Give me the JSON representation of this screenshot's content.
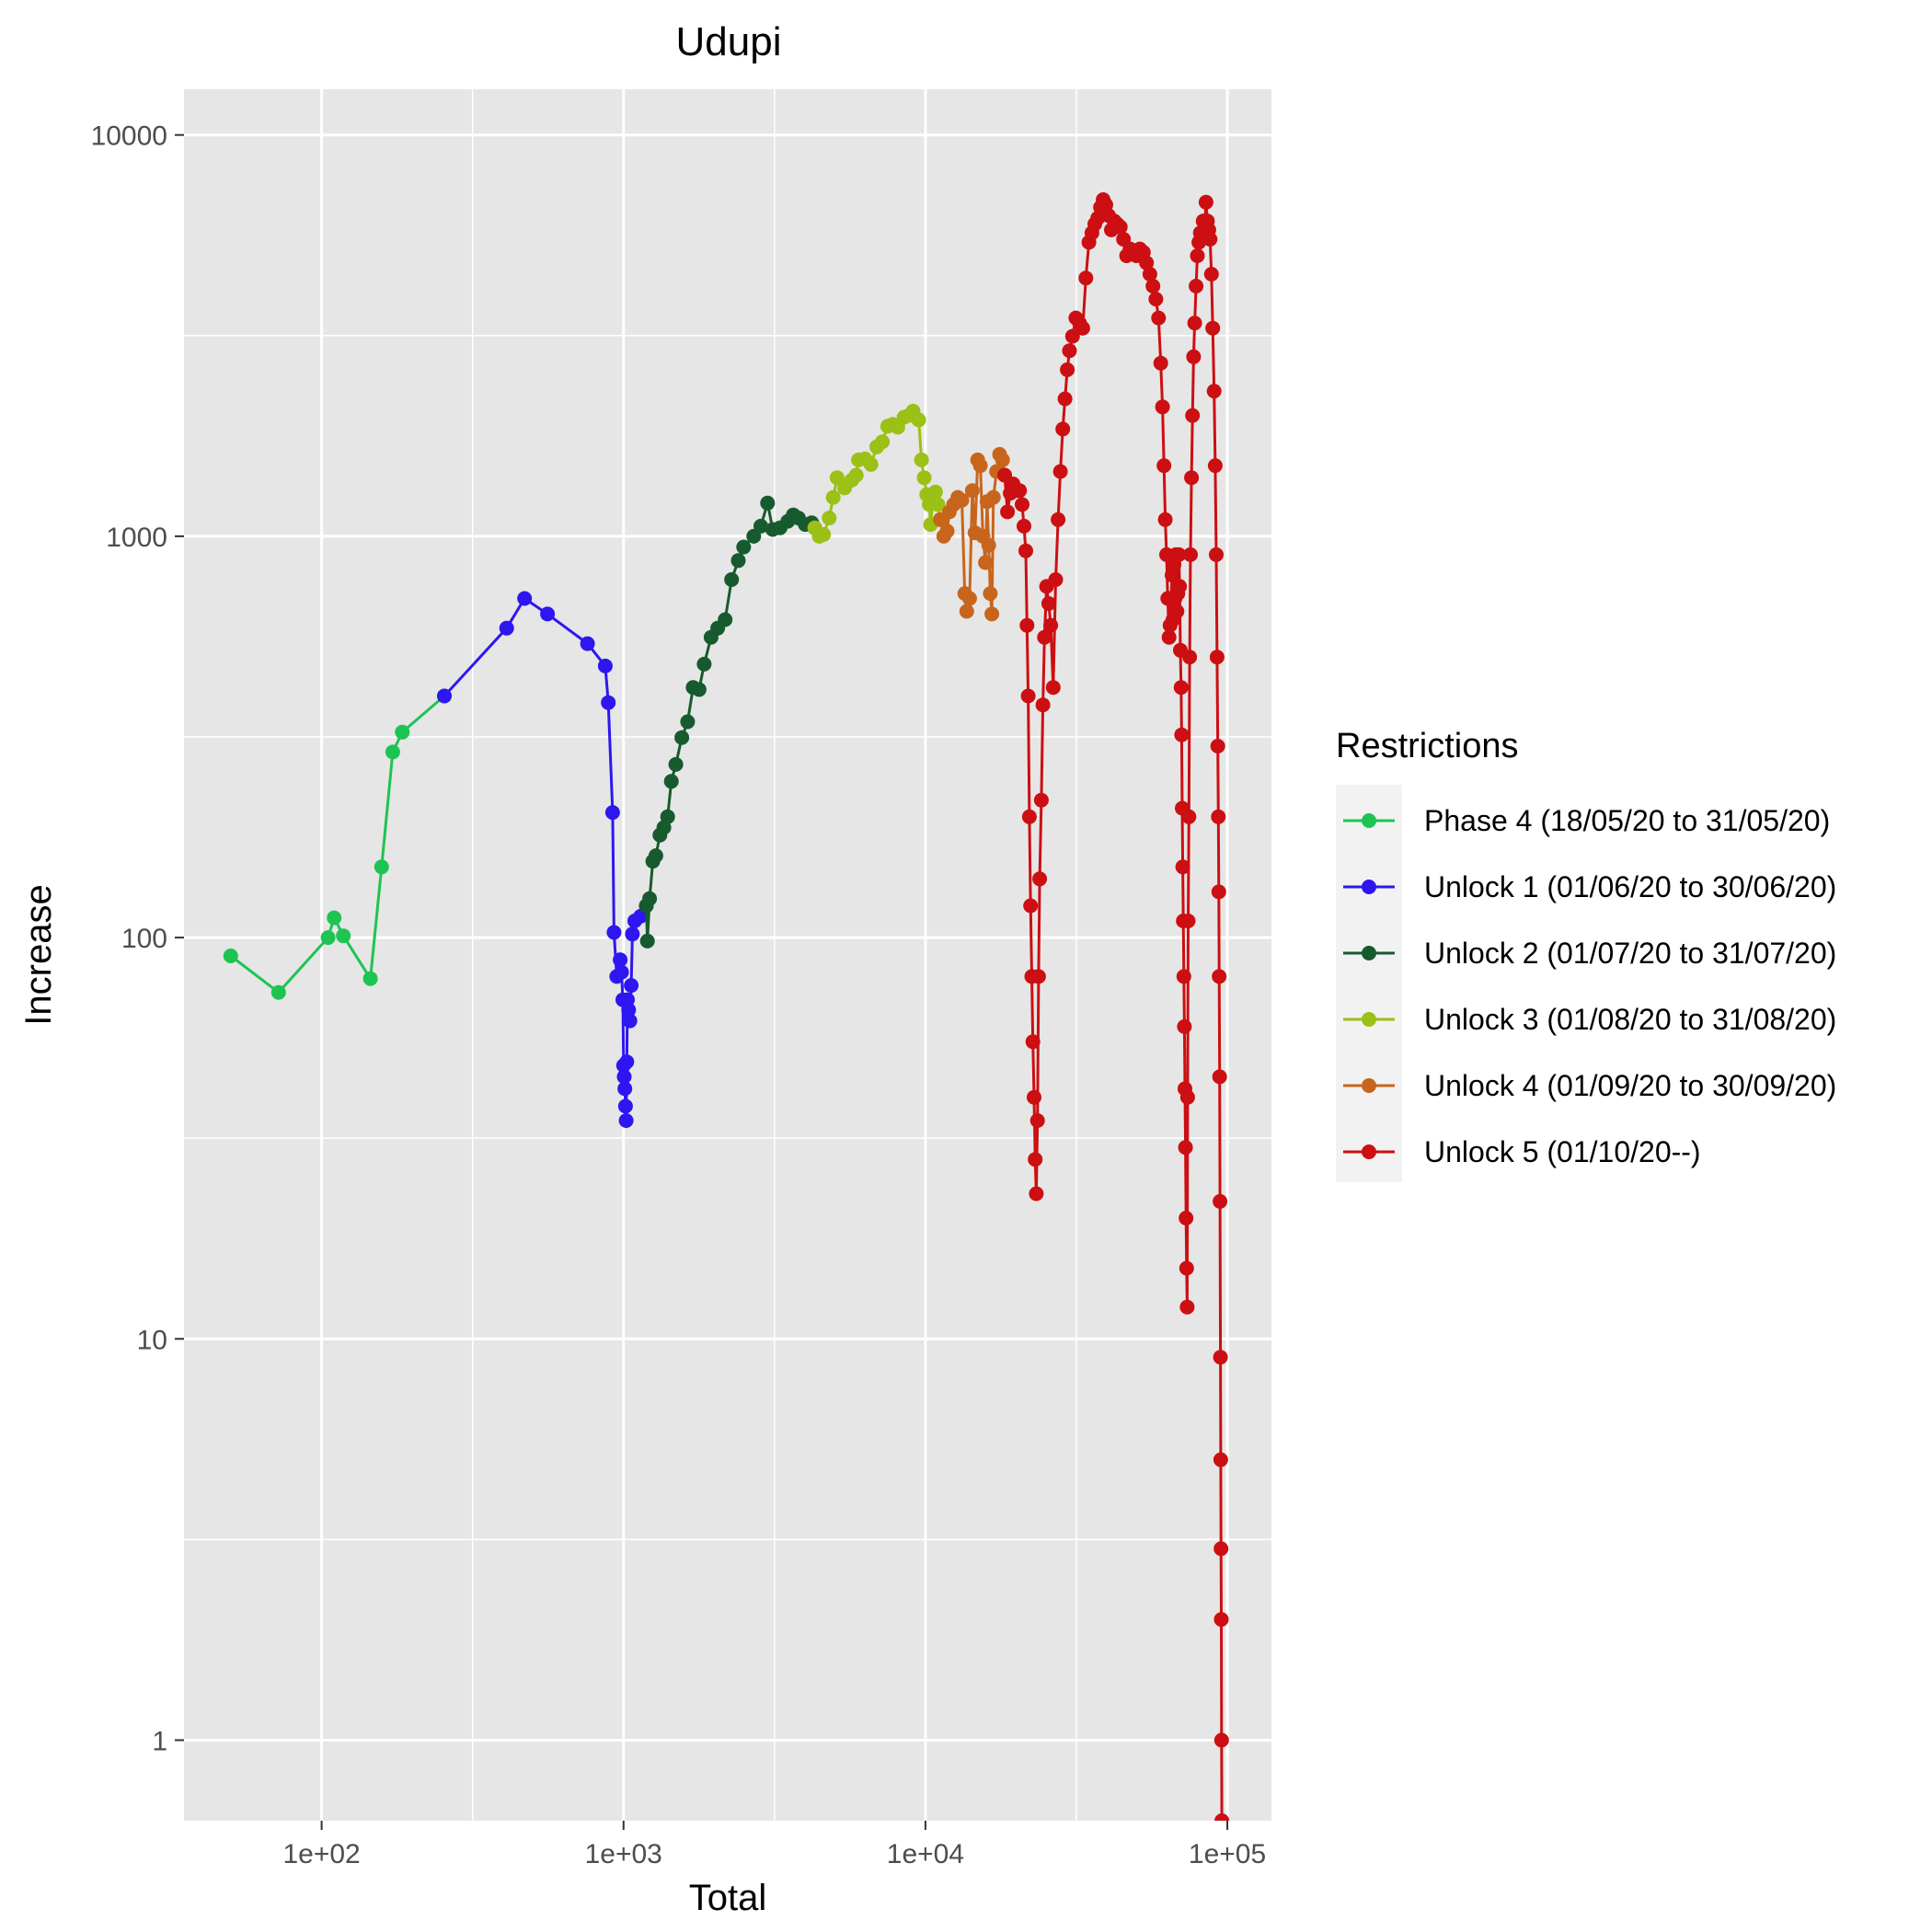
{
  "chart_data": {
    "type": "line",
    "title": "Udupi",
    "xlabel": "Total",
    "ylabel": "Increase",
    "x_scale": "log10",
    "y_scale": "log10",
    "xlim": [
      35,
      140000
    ],
    "ylim": [
      0.63,
      13000
    ],
    "x_ticks": [
      {
        "value": 100,
        "label": "1e+02"
      },
      {
        "value": 1000,
        "label": "1e+03"
      },
      {
        "value": 10000,
        "label": "1e+04"
      },
      {
        "value": 100000,
        "label": "1e+05"
      }
    ],
    "y_ticks": [
      {
        "value": 1,
        "label": "1"
      },
      {
        "value": 10,
        "label": "10"
      },
      {
        "value": 100,
        "label": "100"
      },
      {
        "value": 1000,
        "label": "1000"
      },
      {
        "value": 10000,
        "label": "10000"
      }
    ],
    "grid": true,
    "legend_title": "Restrictions",
    "legend_position": "right",
    "series": [
      {
        "name": "Phase 4 (18/05/20 to 31/05/20)",
        "color": "#1ec452",
        "points": [
          [
            50,
            90
          ],
          [
            72,
            73
          ],
          [
            105,
            100
          ],
          [
            110,
            112
          ],
          [
            118,
            101
          ],
          [
            145,
            79
          ],
          [
            158,
            150
          ],
          [
            172,
            290
          ],
          [
            185,
            325
          ],
          [
            255,
            400
          ]
        ]
      },
      {
        "name": "Unlock 1 (01/06/20 to 30/06/20)",
        "color": "#2e16f0",
        "points": [
          [
            255,
            400
          ],
          [
            410,
            590
          ],
          [
            470,
            700
          ],
          [
            560,
            640
          ],
          [
            760,
            540
          ],
          [
            870,
            475
          ],
          [
            890,
            385
          ],
          [
            920,
            205
          ],
          [
            930,
            103
          ],
          [
            950,
            80
          ],
          [
            975,
            88
          ],
          [
            985,
            82
          ],
          [
            995,
            70
          ],
          [
            1000,
            48
          ],
          [
            1005,
            45
          ],
          [
            1010,
            42
          ],
          [
            1015,
            38
          ],
          [
            1020,
            35
          ],
          [
            1025,
            49
          ],
          [
            1030,
            70
          ],
          [
            1040,
            66
          ],
          [
            1050,
            62
          ],
          [
            1060,
            76
          ],
          [
            1070,
            102
          ],
          [
            1090,
            110
          ],
          [
            1140,
            113
          ],
          [
            1190,
            120
          ]
        ]
      },
      {
        "name": "Unlock 2 (01/07/20 to 31/07/20)",
        "color": "#175a2e",
        "points": [
          [
            1190,
            120
          ],
          [
            1200,
            98
          ],
          [
            1220,
            125
          ],
          [
            1250,
            155
          ],
          [
            1280,
            160
          ],
          [
            1320,
            180
          ],
          [
            1360,
            188
          ],
          [
            1400,
            200
          ],
          [
            1440,
            245
          ],
          [
            1490,
            270
          ],
          [
            1560,
            315
          ],
          [
            1630,
            345
          ],
          [
            1700,
            420
          ],
          [
            1780,
            415
          ],
          [
            1850,
            480
          ],
          [
            1950,
            560
          ],
          [
            2050,
            590
          ],
          [
            2170,
            620
          ],
          [
            2280,
            780
          ],
          [
            2400,
            870
          ],
          [
            2500,
            940
          ],
          [
            2700,
            1000
          ],
          [
            2850,
            1060
          ],
          [
            3000,
            1210
          ],
          [
            3120,
            1040
          ],
          [
            3300,
            1050
          ],
          [
            3500,
            1090
          ],
          [
            3650,
            1130
          ],
          [
            3800,
            1110
          ],
          [
            4000,
            1070
          ],
          [
            4200,
            1080
          ],
          [
            4300,
            1050
          ]
        ]
      },
      {
        "name": "Unlock 3 (01/08/20 to 31/08/20)",
        "color": "#9bc016",
        "points": [
          [
            4300,
            1050
          ],
          [
            4450,
            1000
          ],
          [
            4600,
            1010
          ],
          [
            4800,
            1110
          ],
          [
            4950,
            1250
          ],
          [
            5100,
            1400
          ],
          [
            5400,
            1320
          ],
          [
            5700,
            1380
          ],
          [
            5900,
            1420
          ],
          [
            6000,
            1550
          ],
          [
            6300,
            1560
          ],
          [
            6600,
            1510
          ],
          [
            6900,
            1670
          ],
          [
            7200,
            1720
          ],
          [
            7500,
            1880
          ],
          [
            7800,
            1900
          ],
          [
            8100,
            1870
          ],
          [
            8500,
            1980
          ],
          [
            8800,
            2000
          ],
          [
            9100,
            2050
          ],
          [
            9500,
            1950
          ],
          [
            9700,
            1550
          ],
          [
            9900,
            1400
          ],
          [
            10100,
            1270
          ],
          [
            10300,
            1200
          ],
          [
            10400,
            1070
          ],
          [
            10600,
            1230
          ],
          [
            10800,
            1290
          ],
          [
            11000,
            1200
          ],
          [
            11200,
            1100
          ]
        ]
      },
      {
        "name": "Unlock 4 (01/09/20 to 30/09/20)",
        "color": "#c8651c",
        "points": [
          [
            11200,
            1100
          ],
          [
            11500,
            1000
          ],
          [
            11800,
            1030
          ],
          [
            12000,
            1150
          ],
          [
            12400,
            1200
          ],
          [
            12800,
            1250
          ],
          [
            13200,
            1230
          ],
          [
            13500,
            720
          ],
          [
            13700,
            650
          ],
          [
            14000,
            700
          ],
          [
            14300,
            1300
          ],
          [
            14600,
            1020
          ],
          [
            14900,
            1550
          ],
          [
            15200,
            1500
          ],
          [
            15500,
            1000
          ],
          [
            15800,
            860
          ],
          [
            16000,
            1220
          ],
          [
            16200,
            950
          ],
          [
            16400,
            720
          ],
          [
            16600,
            640
          ],
          [
            16800,
            1250
          ],
          [
            17200,
            1450
          ],
          [
            17600,
            1600
          ],
          [
            18000,
            1550
          ],
          [
            18300,
            1420
          ]
        ]
      },
      {
        "name": "Unlock 5 (01/10/20--)",
        "color": "#cc0f12",
        "points": [
          [
            18300,
            1420
          ],
          [
            18700,
            1150
          ],
          [
            19100,
            1280
          ],
          [
            19500,
            1350
          ],
          [
            19900,
            1300
          ],
          [
            20500,
            1300
          ],
          [
            20900,
            1200
          ],
          [
            21200,
            1060
          ],
          [
            21500,
            920
          ],
          [
            21700,
            600
          ],
          [
            21900,
            400
          ],
          [
            22100,
            200
          ],
          [
            22300,
            120
          ],
          [
            22500,
            80
          ],
          [
            22700,
            55
          ],
          [
            22900,
            40
          ],
          [
            23100,
            28
          ],
          [
            23300,
            23
          ],
          [
            23500,
            35
          ],
          [
            23700,
            80
          ],
          [
            23900,
            140
          ],
          [
            24200,
            220
          ],
          [
            24500,
            380
          ],
          [
            24800,
            560
          ],
          [
            25200,
            750
          ],
          [
            25600,
            680
          ],
          [
            26000,
            600
          ],
          [
            26500,
            420
          ],
          [
            27000,
            780
          ],
          [
            27500,
            1100
          ],
          [
            28000,
            1450
          ],
          [
            28500,
            1850
          ],
          [
            29000,
            2200
          ],
          [
            29500,
            2600
          ],
          [
            30000,
            2900
          ],
          [
            30700,
            3150
          ],
          [
            31500,
            3500
          ],
          [
            32400,
            3400
          ],
          [
            33200,
            3300
          ],
          [
            34000,
            4400
          ],
          [
            34800,
            5400
          ],
          [
            35600,
            5700
          ],
          [
            36400,
            6000
          ],
          [
            37200,
            6200
          ],
          [
            38000,
            6600
          ],
          [
            38800,
            6900
          ],
          [
            39600,
            6700
          ],
          [
            40400,
            6300
          ],
          [
            41300,
            5800
          ],
          [
            42200,
            6100
          ],
          [
            43200,
            6000
          ],
          [
            44200,
            5900
          ],
          [
            45300,
            5500
          ],
          [
            46400,
            5000
          ],
          [
            47600,
            5200
          ],
          [
            48800,
            5100
          ],
          [
            50000,
            5000
          ],
          [
            51300,
            5200
          ],
          [
            52700,
            5100
          ],
          [
            54000,
            4800
          ],
          [
            55400,
            4500
          ],
          [
            56700,
            4200
          ],
          [
            58000,
            3900
          ],
          [
            59200,
            3500
          ],
          [
            60200,
            2700
          ],
          [
            61000,
            2100
          ],
          [
            61700,
            1500
          ],
          [
            62300,
            1100
          ],
          [
            62900,
            900
          ],
          [
            63500,
            700
          ],
          [
            64100,
            560
          ],
          [
            64600,
            600
          ],
          [
            65100,
            700
          ],
          [
            65600,
            800
          ],
          [
            66100,
            620
          ],
          [
            66600,
            850
          ],
          [
            67100,
            700
          ],
          [
            67600,
            900
          ],
          [
            68100,
            650
          ],
          [
            68600,
            720
          ],
          [
            69100,
            900
          ],
          [
            69500,
            750
          ],
          [
            69900,
            520
          ],
          [
            70300,
            420
          ],
          [
            70600,
            320
          ],
          [
            70900,
            210
          ],
          [
            71200,
            150
          ],
          [
            71500,
            110
          ],
          [
            71800,
            80
          ],
          [
            72100,
            60
          ],
          [
            72400,
            42
          ],
          [
            72700,
            30
          ],
          [
            73000,
            20
          ],
          [
            73300,
            15
          ],
          [
            73600,
            12
          ],
          [
            73900,
            40
          ],
          [
            74200,
            110
          ],
          [
            74600,
            200
          ],
          [
            75000,
            500
          ],
          [
            75500,
            900
          ],
          [
            76100,
            1400
          ],
          [
            76700,
            2000
          ],
          [
            77300,
            2800
          ],
          [
            78000,
            3400
          ],
          [
            78800,
            4200
          ],
          [
            79600,
            5000
          ],
          [
            80500,
            5400
          ],
          [
            81400,
            5700
          ],
          [
            82300,
            5600
          ],
          [
            83200,
            6100
          ],
          [
            84100,
            5900
          ],
          [
            85000,
            6800
          ],
          [
            85900,
            6100
          ],
          [
            86800,
            5800
          ],
          [
            87700,
            5500
          ],
          [
            88600,
            4500
          ],
          [
            89500,
            3300
          ],
          [
            90400,
            2300
          ],
          [
            91200,
            1500
          ],
          [
            91900,
            900
          ],
          [
            92500,
            500
          ],
          [
            93000,
            300
          ],
          [
            93400,
            200
          ],
          [
            93700,
            130
          ],
          [
            94000,
            80
          ],
          [
            94300,
            45
          ],
          [
            94600,
            22
          ],
          [
            94900,
            9
          ],
          [
            95100,
            5
          ],
          [
            95300,
            3
          ],
          [
            95500,
            2
          ],
          [
            95700,
            1
          ],
          [
            95900,
            0.63
          ]
        ]
      }
    ]
  }
}
